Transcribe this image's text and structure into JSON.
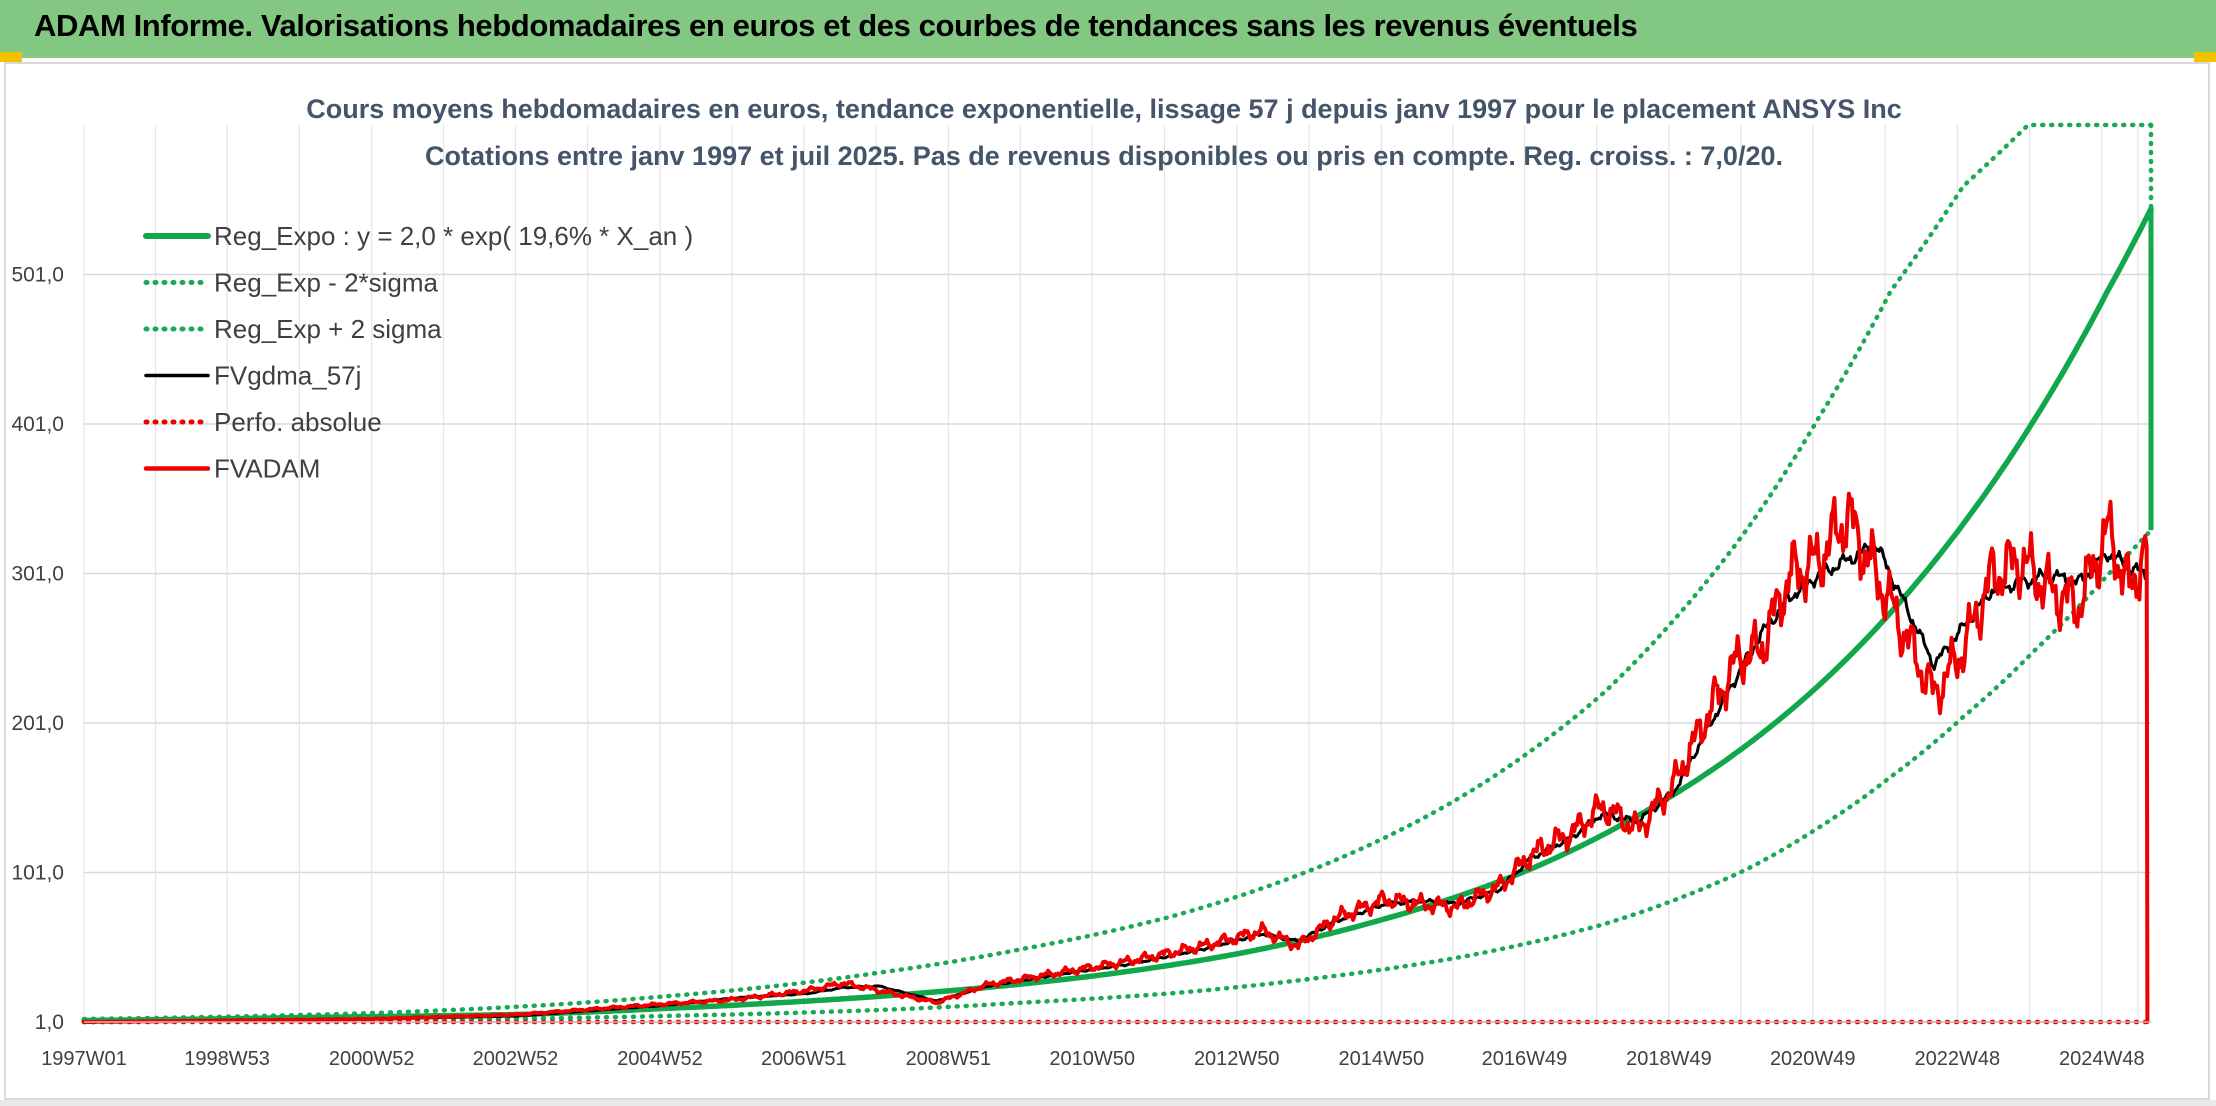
{
  "header": {
    "title": "ADAM Informe. Valorisations hebdomadaires en euros et des courbes de tendances sans les revenus éventuels"
  },
  "colors": {
    "banner": "#82c882",
    "trend_green": "#10a84a",
    "band_green": "#1aaa55",
    "smooth_black": "#000000",
    "price_red": "#ee0000",
    "grid": "#d9d9d9",
    "corner_accent": "#f2c200"
  },
  "chart_data": {
    "type": "line",
    "title": [
      "Cours moyens hebdomadaires en euros, tendance exponentielle, lissage 57 j depuis janv 1997 pour le placement ANSYS Inc",
      "Cotations entre janv 1997 et juil 2025. Pas de revenus disponibles ou pris en compte. Reg. croiss. : 7,0/20."
    ],
    "xlabel": "",
    "ylabel": "",
    "ylim": [
      1,
      601
    ],
    "xlim": [
      1997.0,
      2025.6
    ],
    "y_ticks": [
      1,
      101,
      201,
      301,
      401,
      501
    ],
    "y_tick_labels": [
      "1,0",
      "101,0",
      "201,0",
      "301,0",
      "401,0",
      "501,0"
    ],
    "x_tick_positions": [
      1997.0,
      1998.98,
      2000.98,
      2002.97,
      2004.97,
      2006.96,
      2008.96,
      2010.95,
      2012.95,
      2014.95,
      2016.93,
      2018.93,
      2020.92,
      2022.92,
      2024.92
    ],
    "x_tick_labels": [
      "1997W01",
      "1998W53",
      "2000W52",
      "2002W52",
      "2004W52",
      "2006W51",
      "2008W51",
      "2010W50",
      "2012W50",
      "2014W50",
      "2016W49",
      "2018W49",
      "2020W49",
      "2022W48",
      "2024W48"
    ],
    "grid": true,
    "legend_position": "top-left",
    "series": [
      {
        "name": "Reg_Expo : y = 2,0 * exp( 19,6% *  X_an )",
        "style": "solid-thick",
        "color": "#10a84a",
        "x": [
          1997.0,
          2000.0,
          2003.0,
          2005.0,
          2007.0,
          2009.0,
          2011.0,
          2013.0,
          2015.0,
          2017.0,
          2018.5,
          2020.0,
          2021.0,
          2022.0,
          2023.0,
          2024.0,
          2025.0,
          2025.6
        ],
        "values": [
          2,
          4,
          6,
          10,
          15,
          22,
          32,
          47,
          70,
          103,
          139,
          186,
          226,
          275,
          334,
          405,
          490,
          545
        ]
      },
      {
        "name": "Reg_Exp - 2*sigma",
        "style": "dotted",
        "color": "#1aaa55",
        "x": [
          1997.0,
          2001.0,
          2005.0,
          2008.0,
          2010.0,
          2012.0,
          2014.0,
          2016.0,
          2018.0,
          2020.0,
          2021.0,
          2022.0,
          2023.0,
          2024.0,
          2025.0,
          2025.6
        ],
        "values": [
          1,
          2,
          5,
          9,
          14,
          20,
          30,
          44,
          66,
          103,
          131,
          165,
          205,
          250,
          300,
          330
        ]
      },
      {
        "name": "Reg_Exp + 2 sigma",
        "style": "dotted",
        "color": "#1aaa55",
        "x": [
          1997.0,
          2001.0,
          2005.0,
          2008.0,
          2010.0,
          2012.0,
          2014.0,
          2016.0,
          2018.0,
          2019.0,
          2020.0,
          2021.0,
          2022.0,
          2023.0,
          2023.9,
          2025.6
        ],
        "values": [
          3,
          7,
          18,
          34,
          50,
          71,
          103,
          150,
          220,
          270,
          330,
          405,
          490,
          560,
          601,
          601
        ]
      },
      {
        "name": "FVgdma_57j",
        "style": "solid",
        "color": "#000000",
        "x": [
          1997.0,
          1999.0,
          2001.0,
          2003.0,
          2005.0,
          2006.0,
          2007.0,
          2007.5,
          2008.0,
          2008.8,
          2009.5,
          2010.5,
          2011.5,
          2012.5,
          2013.3,
          2013.8,
          2014.3,
          2015.0,
          2015.5,
          2016.0,
          2016.6,
          2017.0,
          2017.6,
          2018.0,
          2018.5,
          2019.0,
          2019.5,
          2019.9,
          2020.2,
          2020.6,
          2021.0,
          2021.4,
          2021.8,
          2022.2,
          2022.6,
          2023.0,
          2023.4,
          2023.8,
          2024.2,
          2024.6,
          2025.0,
          2025.3,
          2025.55
        ],
        "values": [
          1,
          2,
          3,
          5,
          12,
          17,
          20,
          24,
          25,
          15,
          25,
          33,
          40,
          50,
          60,
          55,
          68,
          80,
          82,
          80,
          90,
          110,
          125,
          140,
          135,
          155,
          200,
          235,
          260,
          285,
          300,
          310,
          320,
          280,
          240,
          265,
          290,
          295,
          300,
          295,
          315,
          305,
          300
        ]
      },
      {
        "name": "Perfo. absolue",
        "style": "dotted",
        "color": "#ee0000",
        "x": [
          1997.0,
          2025.6
        ],
        "values": [
          1,
          1
        ]
      },
      {
        "name": "FVADAM",
        "style": "solid-thick",
        "color": "#ee0000",
        "x": [
          1997.0,
          1999.0,
          2001.0,
          2003.0,
          2005.0,
          2006.0,
          2007.0,
          2007.5,
          2008.0,
          2008.8,
          2009.5,
          2010.5,
          2011.5,
          2012.5,
          2013.3,
          2013.8,
          2014.3,
          2015.0,
          2015.5,
          2016.0,
          2016.6,
          2017.0,
          2017.6,
          2018.0,
          2018.5,
          2019.0,
          2019.5,
          2019.9,
          2020.2,
          2020.6,
          2021.0,
          2021.4,
          2021.8,
          2022.2,
          2022.6,
          2023.0,
          2023.4,
          2023.8,
          2024.2,
          2024.6,
          2025.0,
          2025.3,
          2025.55
        ],
        "values": [
          1,
          2,
          3,
          6,
          13,
          16,
          22,
          27,
          22,
          14,
          26,
          34,
          42,
          52,
          62,
          52,
          70,
          83,
          80,
          78,
          92,
          112,
          128,
          145,
          130,
          160,
          210,
          245,
          250,
          300,
          310,
          340,
          300,
          260,
          220,
          250,
          300,
          310,
          290,
          280,
          330,
          290,
          320
        ]
      }
    ]
  }
}
